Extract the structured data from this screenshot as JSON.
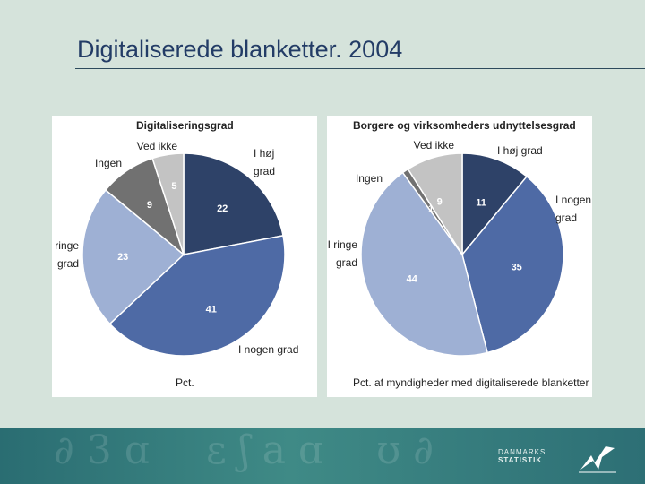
{
  "slide": {
    "title": "Digitaliserede blanketter. 2004",
    "logo_lines": [
      "DANMARKS",
      "STATISTIK"
    ]
  },
  "chart_data": [
    {
      "type": "pie",
      "title": "Digitaliseringsgrad",
      "footnote": "Pct.",
      "start_angle_deg": 0,
      "direction": "clockwise",
      "slices": [
        {
          "label": [
            "I høj",
            "grad"
          ],
          "value": 22,
          "color": "#2e4268"
        },
        {
          "label": [
            "I nogen grad"
          ],
          "value": 41,
          "color": "#4e6aa5"
        },
        {
          "label": [
            "I ringe",
            "grad"
          ],
          "value": 23,
          "color": "#9eb0d4"
        },
        {
          "label": [
            "Ingen"
          ],
          "value": 9,
          "color": "#717171"
        },
        {
          "label": [
            "Ved ikke"
          ],
          "value": 5,
          "color": "#c3c3c3"
        }
      ]
    },
    {
      "type": "pie",
      "title": "Borgere og virksomheders udnyttelsesgrad",
      "footnote": "Pct. af myndigheder med digitaliserede blanketter",
      "start_angle_deg": 0,
      "direction": "clockwise",
      "slices": [
        {
          "label": [
            "I høj grad"
          ],
          "value": 11,
          "color": "#2e4268"
        },
        {
          "label": [
            "I nogen",
            "grad"
          ],
          "value": 35,
          "color": "#4e6aa5"
        },
        {
          "label": [
            "I ringe",
            "grad"
          ],
          "value": 44,
          "color": "#9eb0d4"
        },
        {
          "label": [
            "Ingen"
          ],
          "value": 1,
          "color": "#717171"
        },
        {
          "label": [
            "Ved ikke"
          ],
          "value": 9,
          "color": "#c3c3c3"
        }
      ]
    }
  ]
}
